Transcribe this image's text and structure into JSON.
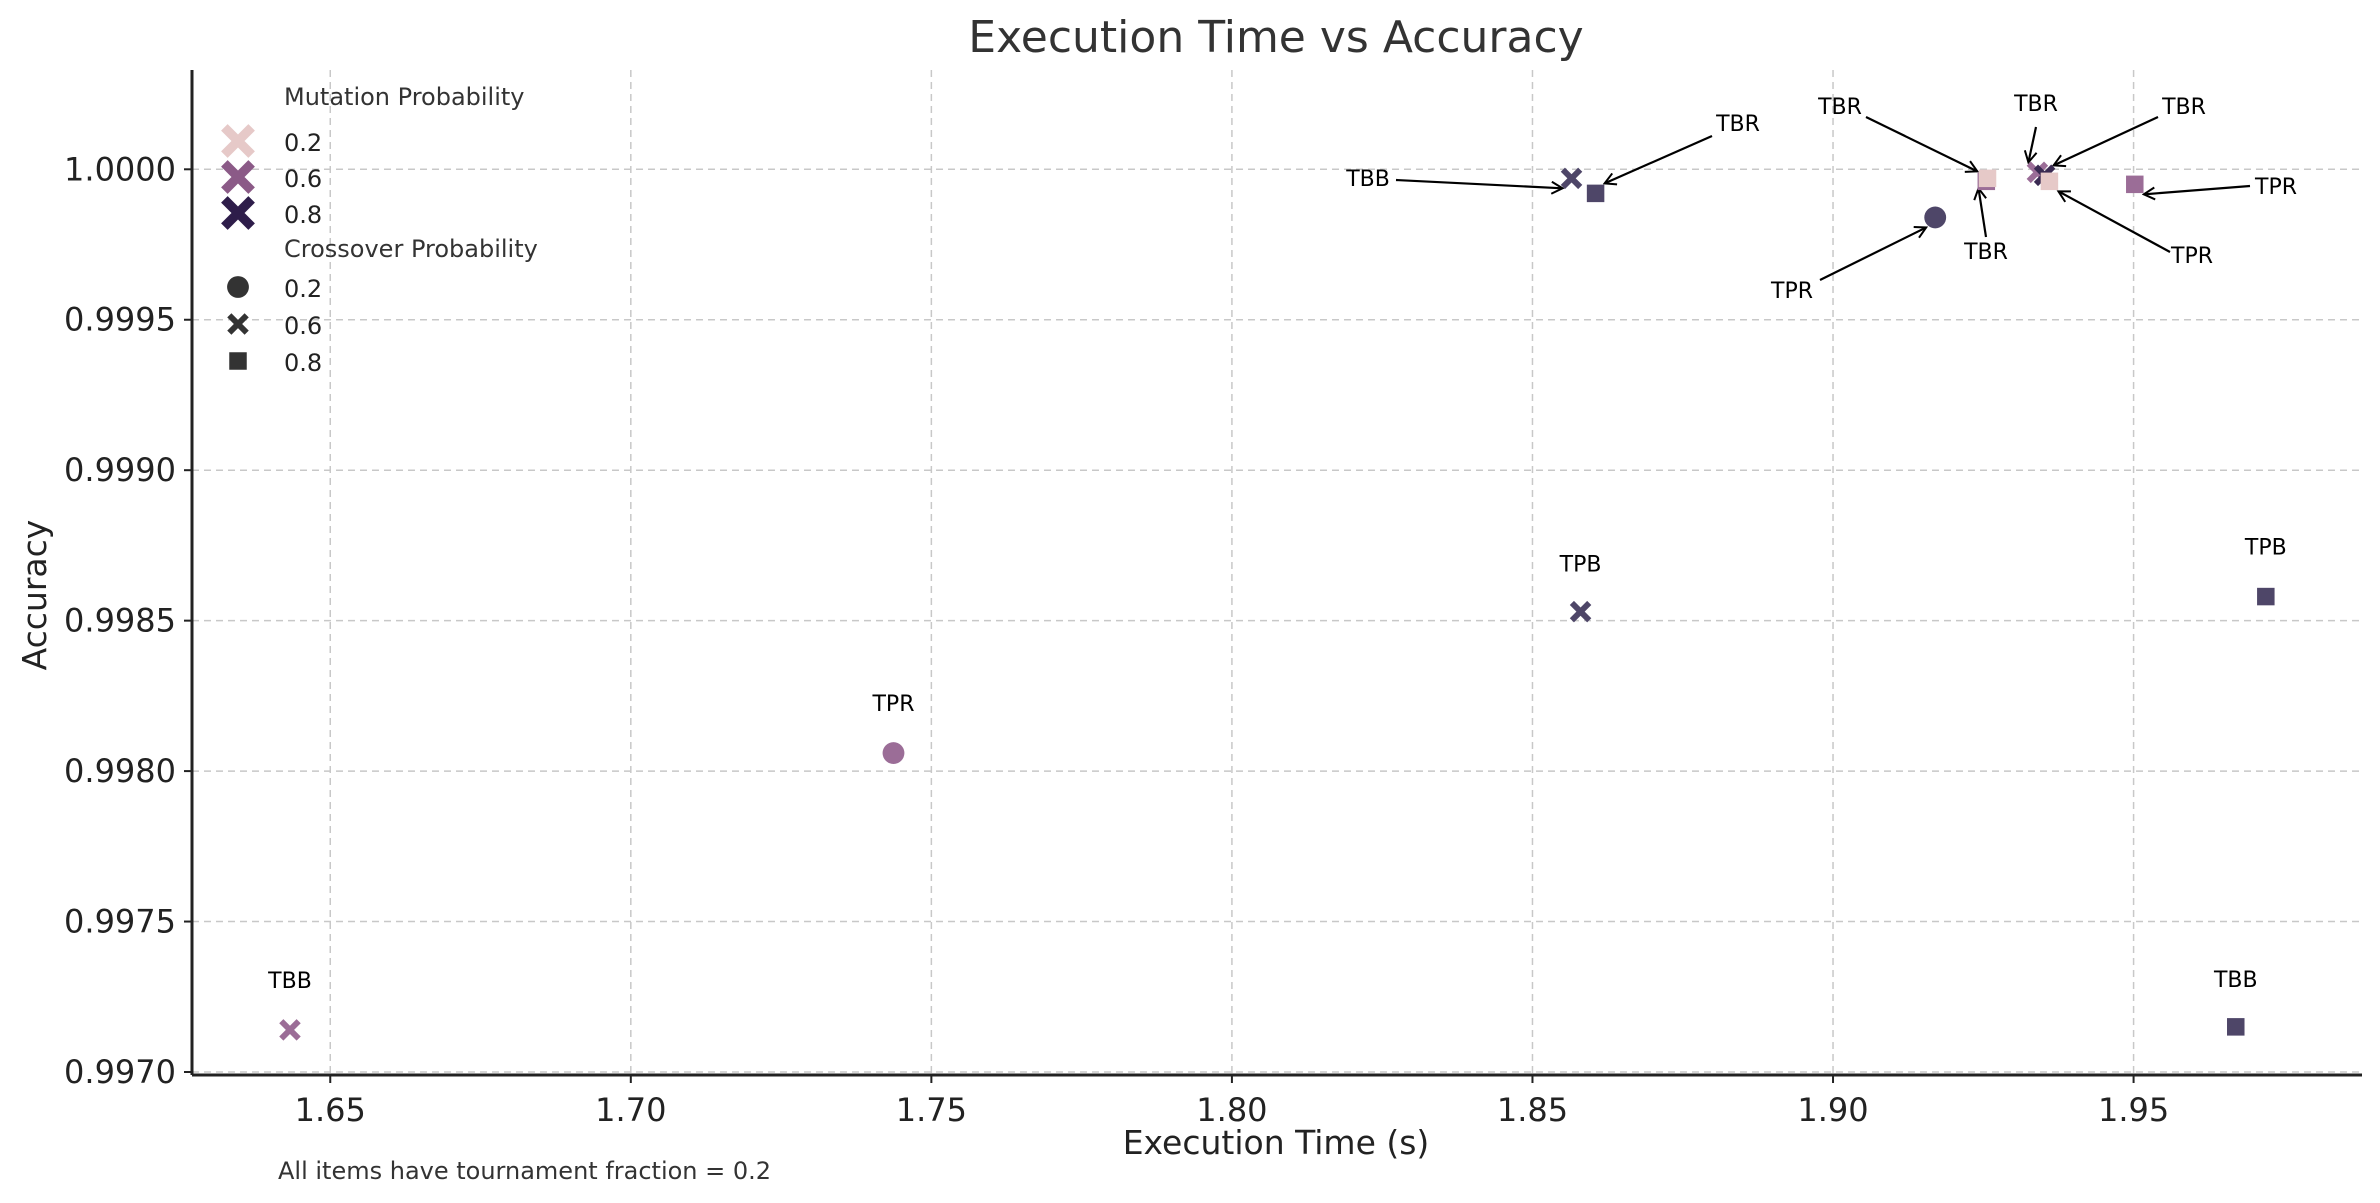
{
  "chart_data": {
    "type": "scatter",
    "title": "Execution Time vs Accuracy",
    "xlabel": "Execution Time (s)",
    "ylabel": "Accuracy",
    "xlim": [
      1.627,
      1.988
    ],
    "ylim": [
      0.99699,
      1.00033
    ],
    "xticks": [
      1.65,
      1.7,
      1.75,
      1.8,
      1.85,
      1.9,
      1.95
    ],
    "xtick_labels": [
      "1.65",
      "1.70",
      "1.75",
      "1.80",
      "1.85",
      "1.90",
      "1.95"
    ],
    "yticks": [
      0.997,
      0.9975,
      0.998,
      0.9985,
      0.999,
      0.9995,
      1.0
    ],
    "ytick_labels": [
      "0.9970",
      "0.9975",
      "0.9980",
      "0.9985",
      "0.9990",
      "0.9995",
      "1.0000"
    ],
    "grid": true,
    "legend_position": "top-left",
    "legend": {
      "hue_title": "Mutation Probability",
      "hue_entries": [
        {
          "label": "0.2",
          "color": "#e6c9c8"
        },
        {
          "label": "0.6",
          "color": "#8b5a87"
        },
        {
          "label": "0.8",
          "color": "#2e1d4a"
        }
      ],
      "style_title": "Crossover Probability",
      "style_entries": [
        {
          "label": "0.2",
          "marker": "circle"
        },
        {
          "label": "0.6",
          "marker": "x"
        },
        {
          "label": "0.8",
          "marker": "square"
        }
      ],
      "style_color": "#333333"
    },
    "points": [
      {
        "x": 1.6433,
        "y": 0.99714,
        "marker": "x",
        "color": "#9b6d97",
        "label": "TBB"
      },
      {
        "x": 1.7437,
        "y": 0.99806,
        "marker": "circle",
        "color": "#9b6d97",
        "label": "TPR"
      },
      {
        "x": 1.858,
        "y": 0.99853,
        "marker": "x",
        "color": "#4e4668",
        "label": "TPB"
      },
      {
        "x": 1.972,
        "y": 0.99858,
        "marker": "square",
        "color": "#4e4668",
        "label": "TPB"
      },
      {
        "x": 1.967,
        "y": 0.99715,
        "marker": "square",
        "color": "#4e4668",
        "label": "TBB"
      },
      {
        "x": 1.8565,
        "y": 0.99997,
        "marker": "x",
        "color": "#4e4668",
        "label": "TBB"
      },
      {
        "x": 1.8605,
        "y": 0.99992,
        "marker": "square",
        "color": "#4e4668",
        "label": "TBR"
      },
      {
        "x": 1.917,
        "y": 0.99984,
        "marker": "circle",
        "color": "#4e4668",
        "label": "TPR"
      },
      {
        "x": 1.9255,
        "y": 0.99996,
        "marker": "square",
        "color": "#9b6d97",
        "label": "TBR"
      },
      {
        "x": 1.9257,
        "y": 0.99997,
        "marker": "square",
        "color": "#e6c9c8",
        "label": "TBR"
      },
      {
        "x": 1.934,
        "y": 0.99999,
        "marker": "x",
        "color": "#9b6d97",
        "label": "TBR"
      },
      {
        "x": 1.9352,
        "y": 0.99998,
        "marker": "x",
        "color": "#3a2a52",
        "label": "TBR"
      },
      {
        "x": 1.936,
        "y": 0.99996,
        "marker": "square",
        "color": "#e6c9c8",
        "label": "TPR"
      },
      {
        "x": 1.9502,
        "y": 0.99995,
        "marker": "square",
        "color": "#9b6d97",
        "label": "TPR"
      }
    ],
    "footnote": "All items have tournament fraction = 0.2"
  }
}
